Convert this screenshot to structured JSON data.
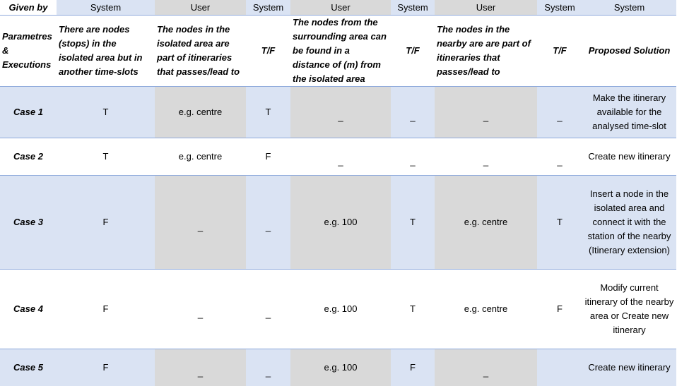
{
  "given_by_row": {
    "label": "Given by",
    "sources": [
      "System",
      "User",
      "System",
      "User",
      "System",
      "User",
      "System",
      "System"
    ]
  },
  "parameter_row": {
    "label": "Parametres & Executions",
    "columns": [
      "There are nodes (stops) in the isolated area but in another time-slots",
      "The nodes in the isolated area are part of itineraries that passes/lead to",
      "T/F",
      "The nodes from the surrounding area can be found in a distance of (m) from the isolated area",
      "T/F",
      "The nodes in the nearby are are part of itineraries that passes/lead to",
      "T/F",
      "Proposed Solution"
    ]
  },
  "cases": [
    {
      "label": "Case 1",
      "cells": [
        "T",
        "e.g. centre",
        "T",
        "_",
        "_",
        "_",
        "_"
      ],
      "solution": "Make the itinerary available for the analysed time-slot"
    },
    {
      "label": "Case 2",
      "cells": [
        "T",
        "e.g. centre",
        "F",
        "_",
        "_",
        "_",
        "_"
      ],
      "solution": "Create new itinerary"
    },
    {
      "label": "Case 3",
      "cells": [
        "F",
        "_",
        "_",
        "e.g. 100",
        "T",
        "e.g. centre",
        "T"
      ],
      "solution": "Insert a node in the isolated area and connect it with the station of the nearby (Itinerary extension)"
    },
    {
      "label": "Case 4",
      "cells": [
        "F",
        "_",
        "_",
        "e.g. 100",
        "T",
        "e.g. centre",
        "F"
      ],
      "solution": "Modify current itinerary of the nearby area or Create new itinerary"
    },
    {
      "label": "Case 5",
      "cells": [
        "F",
        "_",
        "_",
        "e.g. 100",
        "F",
        "_",
        ""
      ],
      "solution": "Create new itinerary"
    }
  ],
  "colors": {
    "system_fill": "#dae3f3",
    "user_fill": "#d9d9d9",
    "border": "#8ea9db"
  }
}
